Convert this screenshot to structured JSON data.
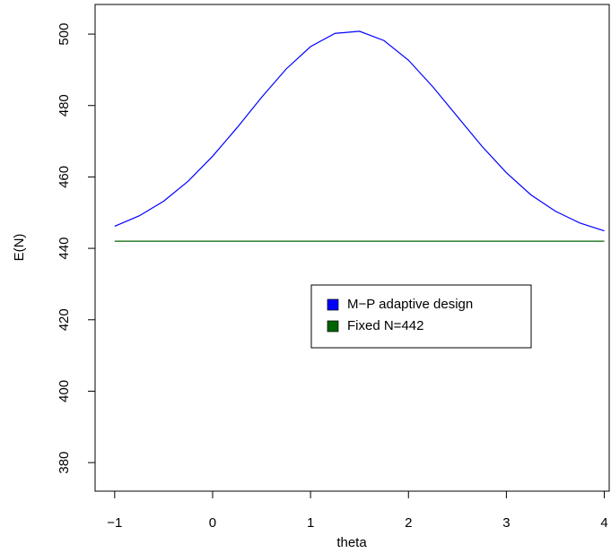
{
  "chart_data": {
    "type": "line",
    "x_label": "theta",
    "y_label": "E(N)",
    "x": [
      -1,
      -0.75,
      -0.5,
      -0.25,
      0,
      0.25,
      0.5,
      0.75,
      1,
      1.25,
      1.5,
      1.75,
      2,
      2.25,
      2.5,
      2.75,
      3,
      3.25,
      3.5,
      3.75,
      4
    ],
    "series": [
      {
        "name": "M−P adaptive design",
        "color": "#0000ff",
        "values": [
          446.2,
          449.1,
          453.2,
          458.8,
          465.8,
          473.8,
          482.3,
          490.2,
          496.5,
          500.2,
          500.8,
          498.2,
          492.7,
          485.2,
          476.9,
          468.6,
          461.2,
          455.0,
          450.4,
          447.1,
          444.9
        ]
      },
      {
        "name": "Fixed N=442",
        "color": "#006400",
        "values": [
          442,
          442,
          442,
          442,
          442,
          442,
          442,
          442,
          442,
          442,
          442,
          442,
          442,
          442,
          442,
          442,
          442,
          442,
          442,
          442,
          442
        ]
      }
    ],
    "xlim": [
      -1.2,
      4.05
    ],
    "ylim": [
      372,
      508.3
    ],
    "xticks": [
      {
        "value": -1,
        "label": "−1"
      },
      0,
      1,
      2,
      3,
      4
    ],
    "yticks": [
      380,
      400,
      420,
      440,
      460,
      480,
      500
    ],
    "grid": false,
    "legend": "center-right"
  }
}
